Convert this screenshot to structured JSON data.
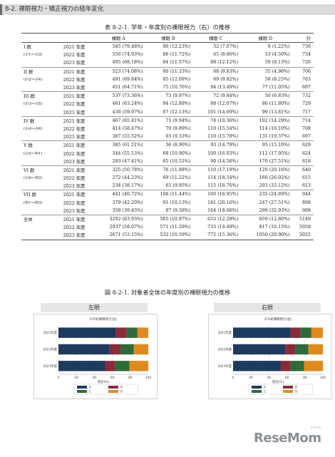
{
  "header": {
    "title": "8-2. 裸眼視力・矯正視力の経年変化"
  },
  "table": {
    "title": "表 8-2-1. 学年・年度別の裸眼視力（右）の推移",
    "columns": [
      "裸眼 A",
      "裸眼 B",
      "裸眼 C",
      "裸眼 D",
      "計"
    ],
    "groups": [
      {
        "name": "I 群",
        "sub": "(小1〜小3)",
        "rows": [
          [
            "2021 年度",
            "585 (79.48%)",
            "90 (12.23%)",
            "52 (7.07%)",
            "9 (1.22%)",
            "736"
          ],
          [
            "2022 年度",
            "550 (74.93%)",
            "86 (11.72%)",
            "65 (8.86%)",
            "33 (4.50%)",
            "734"
          ],
          [
            "2023 年度",
            "495 (68.18%)",
            "84 (11.57%)",
            "88 (12.12%)",
            "59 (8.13%)",
            "726"
          ]
        ]
      },
      {
        "name": "II 群",
        "sub": "(小2〜小4)",
        "rows": [
          [
            "2021 年度",
            "523 (74.08%)",
            "80 (11.33%)",
            "68 (9.63%)",
            "35 (4.96%)",
            "706"
          ],
          [
            "2022 年度",
            "491 (69.84%)",
            "85 (12.09%)",
            "69 (9.82%)",
            "58 (8.25%)",
            "703"
          ],
          [
            "2023 年度",
            "451 (64.71%)",
            "75 (10.76%)",
            "94 (13.49%)",
            "77 (11.05%)",
            "697"
          ]
        ]
      },
      {
        "name": "III 群",
        "sub": "(小3〜小5)",
        "rows": [
          [
            "2021 年度",
            "537 (73.36%)",
            "73 (9.97%)",
            "72 (9.84%)",
            "50 (6.83%)",
            "732"
          ],
          [
            "2022 年度",
            "461 (63.24%)",
            "94 (12.89%)",
            "88 (12.07%)",
            "86 (11.80%)",
            "729"
          ],
          [
            "2023 年度",
            "430 (59.97%)",
            "87 (12.13%)",
            "101 (14.09%)",
            "99 (13.81%)",
            "717"
          ]
        ]
      },
      {
        "name": "IV 群",
        "sub": "(小4〜小6)",
        "rows": [
          [
            "2021 年度",
            "467 (65.41%)",
            "71 (9.94%)",
            "74 (10.36%)",
            "102 (14.29%)",
            "714"
          ],
          [
            "2022 年度",
            "414 (58.47%)",
            "70 (9.89%)",
            "110 (15.54%)",
            "114 (16.10%)",
            "708"
          ],
          [
            "2023 年度",
            "387 (55.52%)",
            "65 (9.33%)",
            "110 (15.78%)",
            "135 (19.37%)",
            "697"
          ]
        ]
      },
      {
        "name": "V 群",
        "sub": "(小5〜中1)",
        "rows": [
          [
            "2021 年度",
            "385 (61.21%)",
            "56 (8.90%)",
            "93 (14.79%)",
            "95 (15.10%)",
            "629"
          ],
          [
            "2022 年度",
            "344 (55.13%)",
            "68 (10.90%)",
            "100 (16.03%)",
            "112 (17.95%)",
            "624"
          ],
          [
            "2023 年度",
            "293 (47.41%)",
            "65 (10.52%)",
            "90 (14.56%)",
            "170 (27.51%)",
            "618"
          ]
        ]
      },
      {
        "name": "VI 群",
        "sub": "(小6〜中2)",
        "rows": [
          [
            "2021 年度",
            "325 (50.78%)",
            "76 (11.88%)",
            "110 (17.19%)",
            "129 (20.16%)",
            "640"
          ],
          [
            "2022 年度",
            "272 (44.23%)",
            "69 (11.22%)",
            "114 (18.54%)",
            "160 (26.02%)",
            "615"
          ],
          [
            "2023 年度",
            "234 (38.17%)",
            "61 (9.95%)",
            "115 (18.76%)",
            "203 (33.12%)",
            "613"
          ]
        ]
      },
      {
        "name": "VII 群",
        "sub": "(中1〜中3)",
        "rows": [
          [
            "2021 年度",
            "441 (46.72%)",
            "108 (11.44%)",
            "160 (16.95%)",
            "235 (24.89%)",
            "944"
          ],
          [
            "2022 年度",
            "379 (42.20%)",
            "91 (10.13%)",
            "181 (20.16%)",
            "247 (27.51%)",
            "898"
          ],
          [
            "2023 年度",
            "358 (39.43%)",
            "87 (9.58%)",
            "164 (18.06%)",
            "299 (32.93%)",
            "908"
          ]
        ]
      },
      {
        "name": "全体",
        "sub": "",
        "rows": [
          [
            "2021 年度",
            "3292 (63.93%)",
            "565 (10.97%)",
            "633 (12.29%)",
            "659 (12.80%)",
            "5149"
          ],
          [
            "2022 年度",
            "2937 (58.07%)",
            "571 (11.29%)",
            "733 (14.49%)",
            "817 (16.15%)",
            "5058"
          ],
          [
            "2023 年度",
            "2671 (53.15%)",
            "532 (10.59%)",
            "772 (15.36%)",
            "1050 (20.90%)",
            "5025"
          ]
        ]
      }
    ]
  },
  "figure": {
    "title": "図 8-2-1. 対象者全体の年度別の裸眼視力の推移",
    "left_label": "左眼",
    "right_label": "右眼"
  },
  "colors": {
    "A": "#1f3a5f",
    "B": "#8b2a3a",
    "C": "#2e6b3a",
    "D": "#e08a1e"
  },
  "chart_data": [
    {
      "type": "bar",
      "title": "370式裸眼視力(左)",
      "xlabel": "割合(%)",
      "categories": [
        "2021年度",
        "2022年度",
        "2023年度"
      ],
      "xlim": [
        0,
        100
      ],
      "xticks": [
        "0",
        "20",
        "40",
        "60",
        "80",
        "100"
      ],
      "stacked": true,
      "orientation": "horizontal",
      "legend": "bottom",
      "series": [
        {
          "name": "A",
          "values": [
            64,
            57,
            52
          ]
        },
        {
          "name": "B",
          "values": [
            12,
            12,
            11
          ]
        },
        {
          "name": "C",
          "values": [
            12,
            15,
            16
          ]
        },
        {
          "name": "D",
          "values": [
            12,
            16,
            21
          ]
        }
      ]
    },
    {
      "type": "bar",
      "title": "370式裸眼視力(右)",
      "xlabel": "割合(%)",
      "categories": [
        "2021年度",
        "2022年度",
        "2023年度"
      ],
      "xlim": [
        0,
        100
      ],
      "xticks": [
        "0",
        "20",
        "40",
        "60",
        "80",
        "100"
      ],
      "stacked": true,
      "orientation": "horizontal",
      "legend": "bottom",
      "series": [
        {
          "name": "A",
          "values": [
            63.93,
            58.07,
            53.15
          ]
        },
        {
          "name": "B",
          "values": [
            10.97,
            11.29,
            10.59
          ]
        },
        {
          "name": "C",
          "values": [
            12.29,
            14.49,
            15.36
          ]
        },
        {
          "name": "D",
          "values": [
            12.8,
            16.15,
            20.9
          ]
        }
      ]
    }
  ],
  "logo": {
    "text": "ReseMom",
    "small": "リセマム"
  }
}
